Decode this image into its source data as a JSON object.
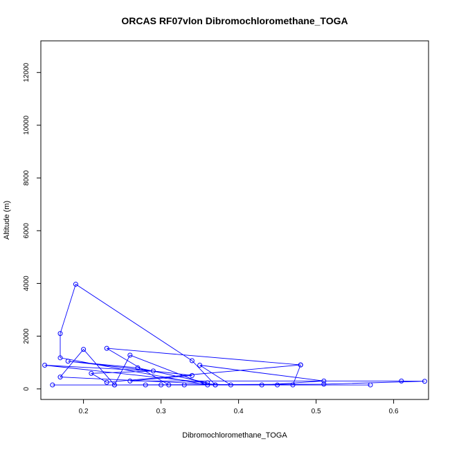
{
  "chart_data": {
    "type": "scatter",
    "title": "ORCAS RF07vlon Dibromochloromethane_TOGA",
    "xlabel": "Dibromochloromethane_TOGA",
    "ylabel": "Altitude (m)",
    "xlim": [
      0.145,
      0.645
    ],
    "ylim": [
      -400,
      13200
    ],
    "x_ticks": [
      0.2,
      0.3,
      0.4,
      0.5,
      0.6
    ],
    "x_tick_labels": [
      "0.2",
      "0.3",
      "0.4",
      "0.5",
      "0.6"
    ],
    "y_ticks": [
      0,
      2000,
      4000,
      6000,
      8000,
      10000,
      12000
    ],
    "y_tick_labels": [
      "0",
      "2000",
      "4000",
      "6000",
      "8000",
      "10000",
      "12000"
    ],
    "grid": false,
    "series": [
      {
        "color": "#0000ff",
        "mode": "lines+markers",
        "x": [
          0.16,
          0.57,
          0.37,
          0.3,
          0.45,
          0.33,
          0.28,
          0.24,
          0.51,
          0.64,
          0.61,
          0.26,
          0.34,
          0.18,
          0.27,
          0.36,
          0.15,
          0.29,
          0.21,
          0.23,
          0.48,
          0.23,
          0.31,
          0.43,
          0.51,
          0.35,
          0.39,
          0.17,
          0.2,
          0.24,
          0.26,
          0.36,
          0.17,
          0.17,
          0.19,
          0.34,
          0.37,
          0.47,
          0.48
        ],
        "y": [
          150,
          150,
          150,
          150,
          150,
          150,
          150,
          150,
          180,
          290,
          300,
          300,
          510,
          1050,
          800,
          230,
          900,
          680,
          590,
          250,
          910,
          1540,
          150,
          150,
          300,
          900,
          150,
          450,
          1500,
          150,
          1280,
          150,
          1180,
          2100,
          3970,
          1070,
          150,
          150,
          910
        ]
      }
    ]
  }
}
